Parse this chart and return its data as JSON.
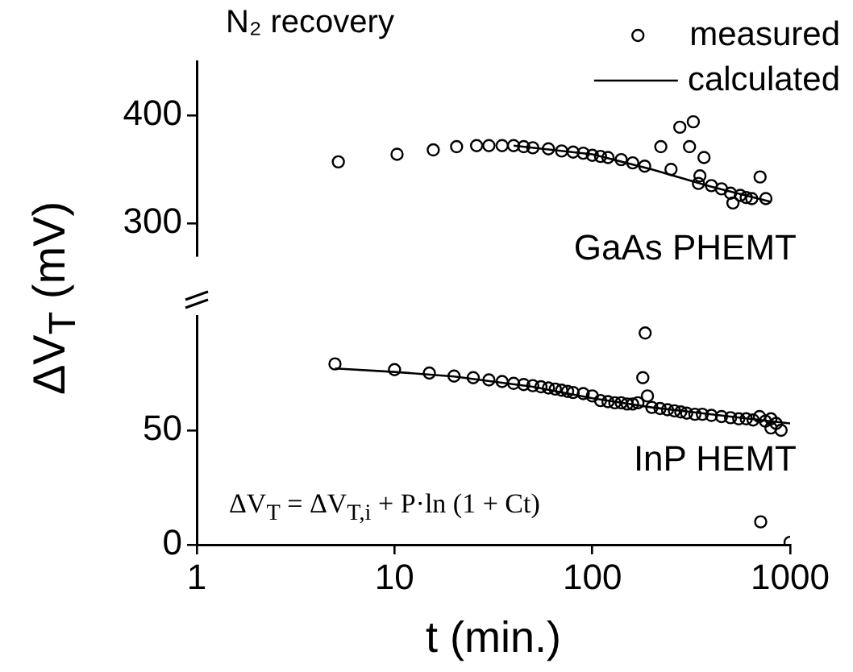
{
  "chart_data": [
    {
      "type": "scatter",
      "title": "N₂ recovery",
      "ylabel": "ΔV$_{T}$ (mV)",
      "xlim": [
        1,
        1000
      ],
      "ylim": [
        270,
        450
      ],
      "yticks": [
        300,
        400
      ],
      "log": "x",
      "grid": false,
      "legend": "top right",
      "tick_labels": "y",
      "marker": "circle",
      "annotations": [
        "GaAs PHEMT"
      ],
      "series": [
        {
          "name": "measured",
          "type": "scatter",
          "color": "#000000",
          "x": [
            5.2,
            10.3,
            15.7,
            20.6,
            26,
            30,
            35,
            40,
            45,
            50,
            60,
            70,
            80,
            90,
            100,
            110,
            120,
            140,
            160,
            184,
            222,
            250,
            277,
            310,
            324,
            344,
            350,
            367,
            400,
            450,
            500,
            514,
            560,
            600,
            640,
            705,
            754
          ],
          "values": [
            357,
            364,
            368,
            371,
            372,
            372,
            372,
            372,
            371,
            370,
            369,
            367,
            366,
            365,
            363,
            362,
            361,
            359,
            356,
            353,
            371,
            350,
            389,
            371,
            394,
            337,
            344,
            361,
            335,
            332,
            328,
            319,
            326,
            324,
            323,
            343,
            323
          ]
        },
        {
          "name": "calculated",
          "type": "line",
          "marker": "none",
          "line_style": "solid",
          "color": "#000000",
          "x": [
            40,
            100,
            200,
            400,
            800
          ],
          "values": [
            372,
            364,
            350,
            334,
            320
          ]
        }
      ]
    },
    {
      "type": "scatter",
      "xlabel": "t (min.)",
      "xlim": [
        1,
        1000
      ],
      "xticks": [
        1,
        10,
        100,
        1000
      ],
      "ylim": [
        0,
        100
      ],
      "yticks": [
        0,
        50
      ],
      "log": "x",
      "grid": false,
      "marker": "circle",
      "annotations": [
        "InP HEMT",
        "ΔV$_{T}$ = ΔV$_{T,i}$ + P·ln (1 + Ct)"
      ],
      "series": [
        {
          "type": "scatter",
          "color": "#000000",
          "x": [
            5,
            10,
            15,
            20,
            25,
            30,
            35,
            40,
            45,
            50,
            55,
            60,
            65,
            70,
            75,
            80,
            90,
            100,
            110,
            120,
            130,
            140,
            150,
            160,
            170,
            180,
            185,
            190,
            200,
            220,
            240,
            260,
            280,
            300,
            330,
            360,
            400,
            450,
            500,
            550,
            600,
            650,
            700,
            750,
            800,
            850,
            800,
            900,
            710,
            1000
          ],
          "values": [
            79,
            76.5,
            75,
            73.7,
            73,
            72,
            71.3,
            70.5,
            70,
            69.5,
            69,
            68.5,
            68,
            67.5,
            67,
            66.5,
            66,
            65,
            63,
            62.5,
            62,
            62,
            61.5,
            61.5,
            62,
            73,
            92.5,
            65,
            60,
            59.5,
            59,
            58.5,
            58,
            57.5,
            57,
            57,
            56.5,
            56,
            55.5,
            55,
            55,
            54.5,
            56,
            54,
            55,
            53,
            51,
            50,
            10,
            1
          ]
        },
        {
          "type": "line",
          "marker": "none",
          "line_style": "solid",
          "color": "#000000",
          "x": [
            5,
            10,
            20,
            50,
            100,
            200,
            500,
            1000
          ],
          "values": [
            77,
            75.5,
            73.5,
            69,
            64,
            60,
            56,
            53
          ]
        }
      ]
    }
  ]
}
